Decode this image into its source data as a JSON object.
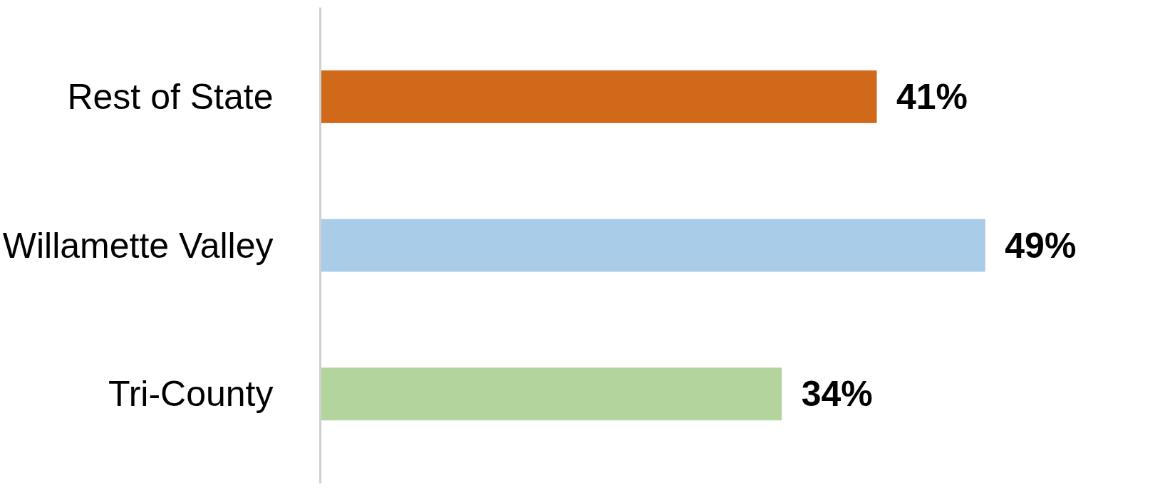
{
  "chart_data": {
    "type": "bar",
    "orientation": "horizontal",
    "categories": [
      "Rest of State",
      "Willamette Valley",
      "Tri-County"
    ],
    "values": [
      41,
      49,
      34
    ],
    "colors": [
      "#d0691a",
      "#a9cce9",
      "#b3d49c"
    ],
    "value_labels": [
      "41%",
      "49%",
      "34%"
    ],
    "grid": false
  }
}
